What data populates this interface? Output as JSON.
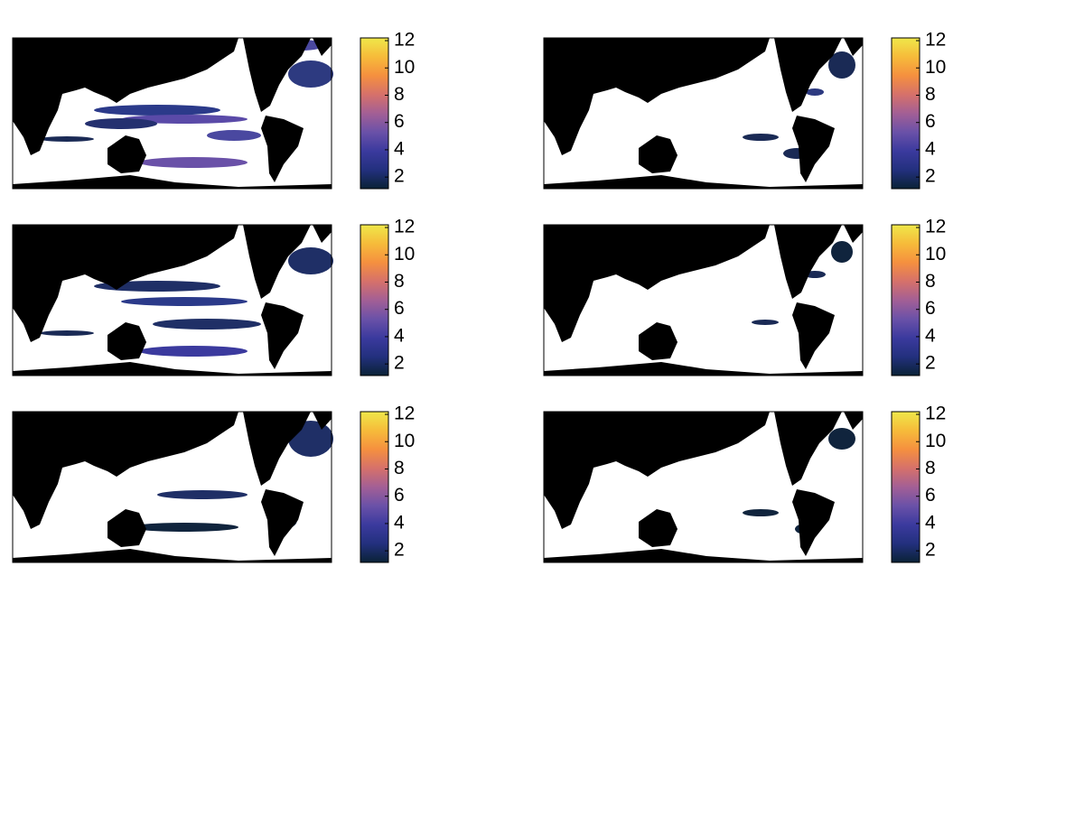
{
  "colormap": [
    "#0a2236",
    "#23307e",
    "#3b3a9e",
    "#6a51a8",
    "#a35f95",
    "#d6716a",
    "#f5903f",
    "#f6bb3a",
    "#efe84a"
  ],
  "panels": [
    {
      "colorbar": {
        "clim": [
          1.15,
          12.2
        ],
        "ticks": [
          2,
          4,
          6,
          8,
          10,
          12
        ]
      }
    },
    {
      "colorbar": {
        "clim": [
          1.15,
          12.2
        ],
        "ticks": [
          2,
          4,
          6,
          8,
          10,
          12
        ]
      }
    },
    {
      "colorbar": {
        "clim": [
          1.15,
          12.2
        ],
        "ticks": [
          2,
          4,
          6,
          8,
          10,
          12
        ]
      }
    },
    {
      "colorbar": {
        "clim": [
          1.15,
          12.2
        ],
        "ticks": [
          2,
          4,
          6,
          8,
          10,
          12
        ]
      }
    },
    {
      "colorbar": {
        "clim": [
          1.15,
          12.2
        ],
        "ticks": [
          2,
          4,
          6,
          8,
          10,
          12
        ]
      }
    },
    {
      "colorbar": {
        "clim": [
          1.15,
          12.2
        ],
        "ticks": [
          2,
          4,
          6,
          8,
          10,
          12
        ]
      }
    }
  ]
}
